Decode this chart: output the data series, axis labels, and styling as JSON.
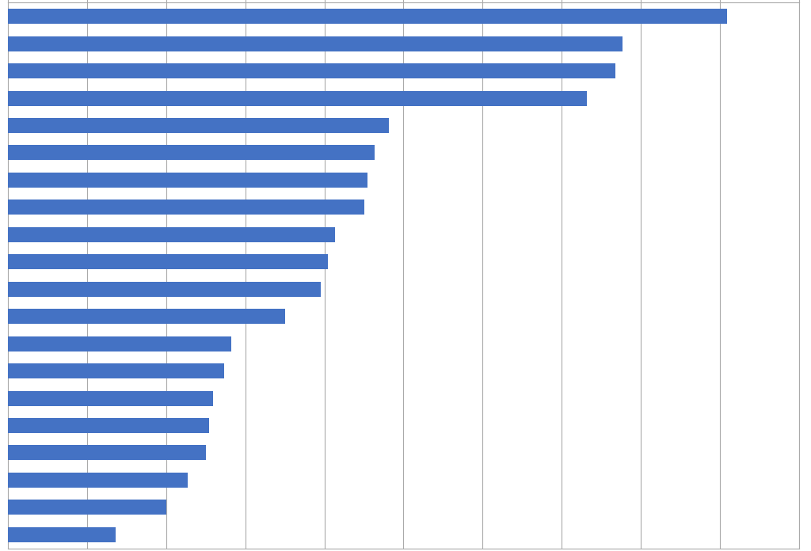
{
  "values": [
    10.0,
    8.55,
    8.45,
    8.05,
    5.3,
    5.1,
    5.0,
    4.95,
    4.55,
    4.45,
    4.35,
    3.85,
    3.1,
    3.0,
    2.85,
    2.8,
    2.75,
    2.5,
    2.2,
    1.5
  ],
  "bar_color": "#4472C4",
  "background_color": "#FFFFFF",
  "grid_color": "#AAAAAA",
  "xlim_max": 11.0,
  "bar_height": 0.55,
  "n_xticks": 11,
  "figsize": [
    10.24,
    6.96
  ],
  "dpi": 100,
  "spine_color": "#AAAAAA"
}
